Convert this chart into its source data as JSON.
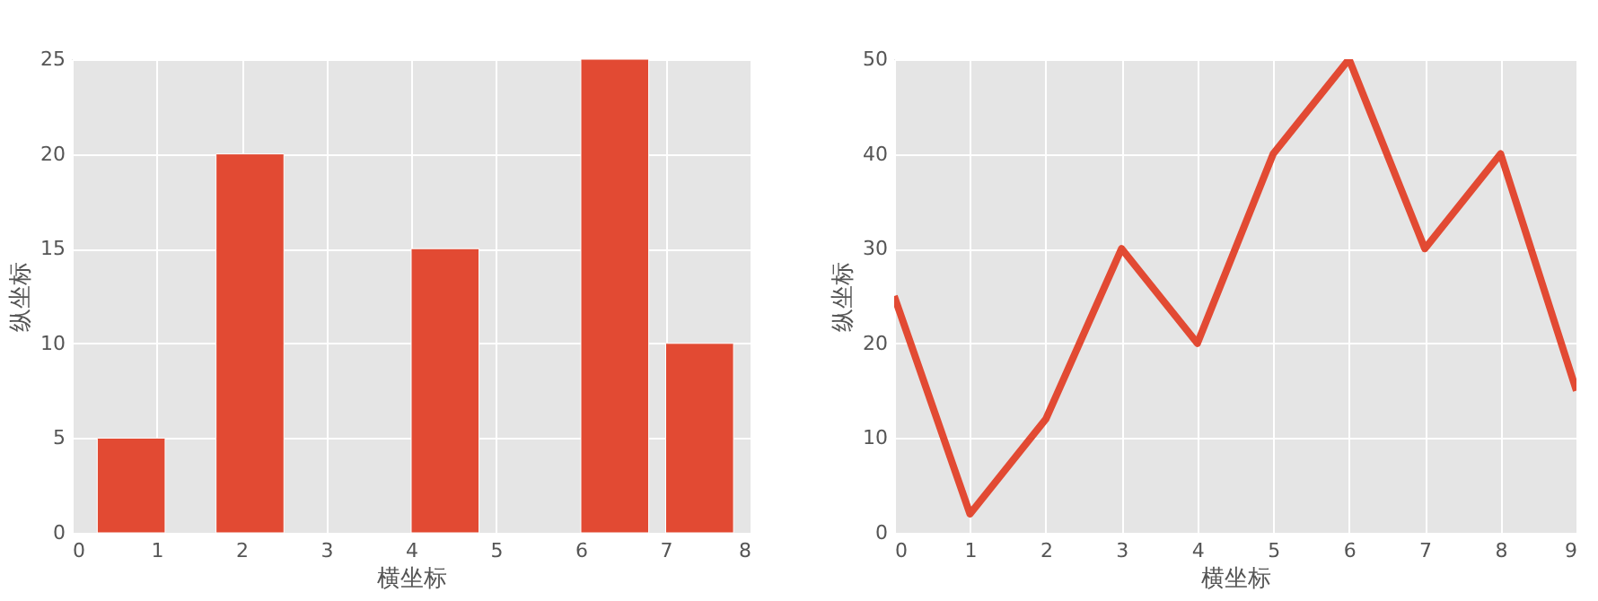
{
  "chart_data": [
    {
      "type": "bar",
      "xlabel": "横坐标",
      "ylabel": "纵坐标",
      "x": [
        0.7,
        2.1,
        4.4,
        6.4,
        7.4
      ],
      "values": [
        5,
        20,
        15,
        25,
        10
      ],
      "color": "#e24a33",
      "xlim": [
        0,
        8
      ],
      "xticks": [
        0,
        1,
        2,
        3,
        4,
        5,
        6,
        7,
        8
      ],
      "ylim": [
        0,
        25
      ],
      "yticks": [
        0,
        5,
        10,
        15,
        20,
        25
      ],
      "grid": true
    },
    {
      "type": "line",
      "xlabel": "横坐标",
      "ylabel": "纵坐标",
      "x": [
        0,
        1,
        2,
        3,
        4,
        5,
        6,
        7,
        8,
        9
      ],
      "values": [
        25,
        2,
        12,
        30,
        20,
        40,
        50,
        30,
        40,
        15
      ],
      "color": "#e24a33",
      "xlim": [
        0,
        9
      ],
      "xticks": [
        0,
        1,
        2,
        3,
        4,
        5,
        6,
        7,
        8,
        9
      ],
      "ylim": [
        0,
        50
      ],
      "yticks": [
        0,
        10,
        20,
        30,
        40,
        50
      ],
      "grid": true,
      "marker": "none",
      "line_style": "solid"
    }
  ]
}
